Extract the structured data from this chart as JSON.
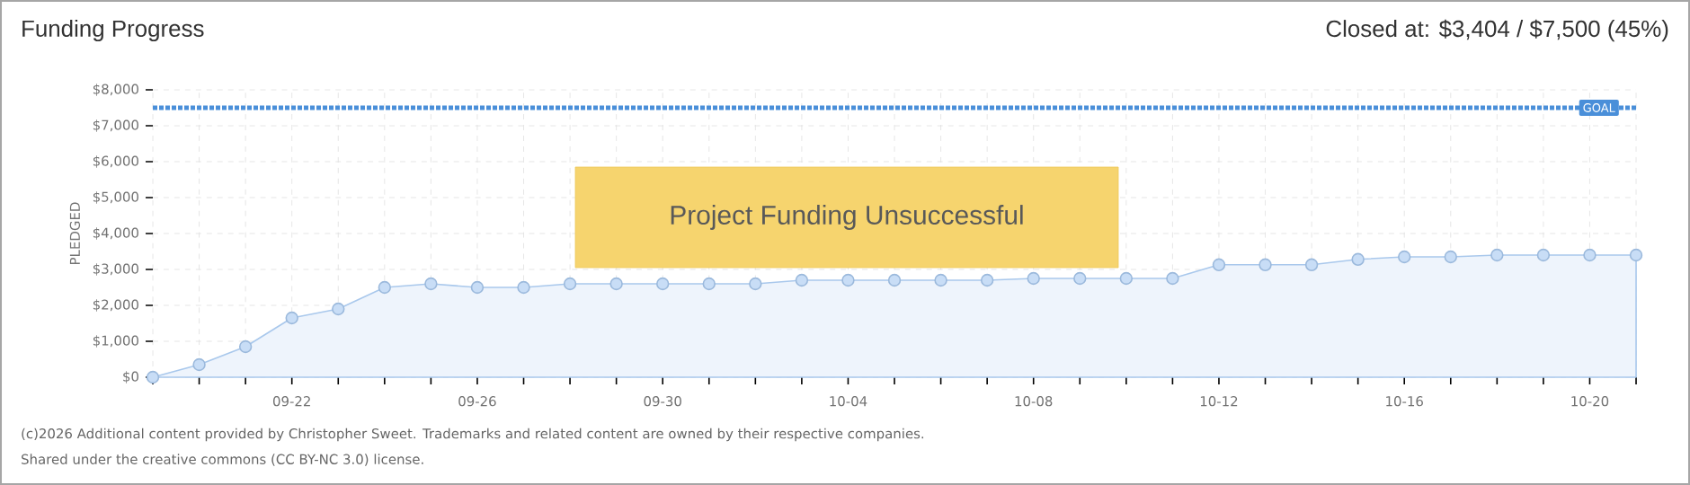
{
  "chart_data": {
    "type": "area",
    "title": "Funding Progress",
    "subtitle": "Closed at: $3,404 / $7,500 (45%)",
    "ylabel": "PLEDGED",
    "categories": [
      null,
      null,
      null,
      "09-22",
      null,
      null,
      null,
      "09-26",
      null,
      null,
      null,
      "09-30",
      null,
      null,
      null,
      "10-04",
      null,
      null,
      null,
      "10-08",
      null,
      null,
      null,
      "10-12",
      null,
      null,
      null,
      "10-16",
      null,
      null,
      null,
      "10-20",
      null
    ],
    "series": [
      {
        "color": "#a9c8ec",
        "values": [
          0,
          350,
          850,
          1650,
          1900,
          2500,
          2600,
          2500,
          2500,
          2600,
          2600,
          2600,
          2600,
          2600,
          2700,
          2700,
          2700,
          2700,
          2700,
          2750,
          2750,
          2750,
          2750,
          3130,
          3130,
          3130,
          3280,
          3350,
          3350,
          3400,
          3400,
          3400,
          3400
        ]
      }
    ],
    "ylim": [
      0,
      8000
    ],
    "yticks": [
      {
        "value": 0,
        "label": "$0"
      },
      {
        "value": 1000,
        "label": "$1,000"
      },
      {
        "value": 2000,
        "label": "$2,000"
      },
      {
        "value": 3000,
        "label": "$3,000"
      },
      {
        "value": 4000,
        "label": "$4,000"
      },
      {
        "value": 5000,
        "label": "$5,000"
      },
      {
        "value": 6000,
        "label": "$6,000"
      },
      {
        "value": 7000,
        "label": "$7,000"
      },
      {
        "value": 8000,
        "label": "$8,000"
      }
    ],
    "ref_lines": [
      {
        "axis": "y",
        "value": 7500,
        "label": "GOAL",
        "color": "#4a8fd9",
        "line_style": "dotted"
      }
    ],
    "annotations": [
      "Project Funding Unsuccessful",
      "(c)2026 Additional content provided by Christopher Sweet. Trademarks and related content are owned by their respective companies.",
      "Shared under the creative commons (CC BY-NC 3.0) license."
    ],
    "grid": true,
    "marker": "circle"
  }
}
